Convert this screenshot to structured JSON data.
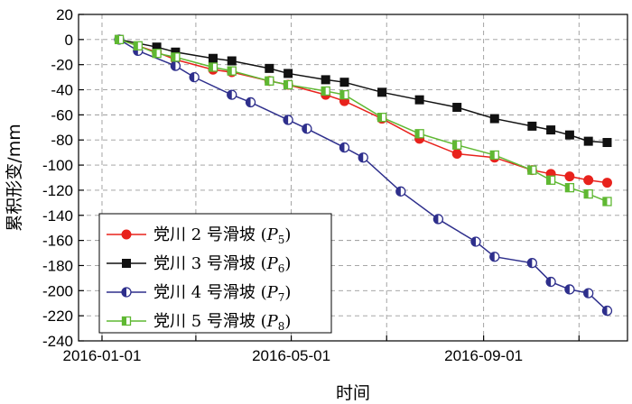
{
  "chart_data": {
    "type": "line",
    "xlabel": "时间",
    "ylabel": "累积形变/mm",
    "x_axis_type": "date",
    "xlim": [
      "2015-12-17",
      "2016-12-02"
    ],
    "ylim": [
      -240,
      20
    ],
    "x_ticks": [
      "2016-01-01",
      "2016-05-01",
      "2016-09-01"
    ],
    "x_minor_gridlines": [
      "2016-03-01",
      "2016-07-01",
      "2016-11-01"
    ],
    "y_ticks": [
      20,
      0,
      -20,
      -40,
      -60,
      -80,
      -100,
      -120,
      -140,
      -160,
      -180,
      -200,
      -220,
      -240
    ],
    "grid": true,
    "grid_style": "dashed",
    "legend_position": "bottom-left",
    "series": [
      {
        "name": "党川 2 号滑坡",
        "subscript_label": {
          "prefix": "P",
          "sub": "5"
        },
        "color": "#e8221c",
        "marker": "circle",
        "points": [
          [
            "2016-01-12",
            0
          ],
          [
            "2016-02-05",
            -10
          ],
          [
            "2016-02-17",
            -16
          ],
          [
            "2016-03-12",
            -24
          ],
          [
            "2016-03-24",
            -26
          ],
          [
            "2016-04-17",
            -33
          ],
          [
            "2016-04-29",
            -36
          ],
          [
            "2016-05-23",
            -44
          ],
          [
            "2016-06-04",
            -49
          ],
          [
            "2016-06-28",
            -63
          ],
          [
            "2016-07-22",
            -79
          ],
          [
            "2016-08-15",
            -91
          ],
          [
            "2016-09-08",
            -94
          ],
          [
            "2016-10-02",
            -104
          ],
          [
            "2016-10-14",
            -107
          ],
          [
            "2016-10-26",
            -109
          ],
          [
            "2016-11-07",
            -112
          ],
          [
            "2016-11-19",
            -114
          ]
        ]
      },
      {
        "name": "党川 3 号滑坡",
        "subscript_label": {
          "prefix": "P",
          "sub": "6"
        },
        "color": "#111111",
        "marker": "square",
        "points": [
          [
            "2016-01-12",
            0
          ],
          [
            "2016-02-05",
            -6
          ],
          [
            "2016-02-17",
            -10
          ],
          [
            "2016-03-12",
            -15
          ],
          [
            "2016-03-24",
            -17
          ],
          [
            "2016-04-17",
            -23
          ],
          [
            "2016-04-29",
            -27
          ],
          [
            "2016-05-23",
            -32
          ],
          [
            "2016-06-04",
            -34
          ],
          [
            "2016-06-28",
            -42
          ],
          [
            "2016-07-22",
            -48
          ],
          [
            "2016-08-15",
            -54
          ],
          [
            "2016-09-08",
            -63
          ],
          [
            "2016-10-02",
            -69
          ],
          [
            "2016-10-14",
            -72
          ],
          [
            "2016-10-26",
            -76
          ],
          [
            "2016-11-07",
            -81
          ],
          [
            "2016-11-19",
            -82
          ]
        ]
      },
      {
        "name": "党川 4 号滑坡",
        "subscript_label": {
          "prefix": "P",
          "sub": "7"
        },
        "color": "#2e2f8c",
        "marker": "half-circle",
        "points": [
          [
            "2016-01-12",
            0
          ],
          [
            "2016-01-24",
            -9
          ],
          [
            "2016-02-17",
            -21
          ],
          [
            "2016-02-29",
            -30
          ],
          [
            "2016-03-24",
            -44
          ],
          [
            "2016-04-05",
            -50
          ],
          [
            "2016-04-29",
            -64
          ],
          [
            "2016-05-11",
            -71
          ],
          [
            "2016-06-04",
            -86
          ],
          [
            "2016-06-16",
            -94
          ],
          [
            "2016-07-10",
            -121
          ],
          [
            "2016-08-03",
            -143
          ],
          [
            "2016-08-27",
            -161
          ],
          [
            "2016-09-08",
            -173
          ],
          [
            "2016-10-02",
            -178
          ],
          [
            "2016-10-14",
            -193
          ],
          [
            "2016-10-26",
            -199
          ],
          [
            "2016-11-07",
            -202
          ],
          [
            "2016-11-19",
            -216
          ]
        ]
      },
      {
        "name": "党川 5 号滑坡",
        "subscript_label": {
          "prefix": "P",
          "sub": "8"
        },
        "color": "#5fb832",
        "marker": "half-square",
        "points": [
          [
            "2016-01-12",
            0
          ],
          [
            "2016-01-24",
            -5
          ],
          [
            "2016-02-05",
            -11
          ],
          [
            "2016-02-17",
            -14
          ],
          [
            "2016-03-12",
            -22
          ],
          [
            "2016-03-24",
            -25
          ],
          [
            "2016-04-17",
            -33
          ],
          [
            "2016-04-29",
            -36
          ],
          [
            "2016-05-23",
            -41
          ],
          [
            "2016-06-04",
            -44
          ],
          [
            "2016-06-28",
            -62
          ],
          [
            "2016-07-22",
            -75
          ],
          [
            "2016-08-15",
            -84
          ],
          [
            "2016-09-08",
            -92
          ],
          [
            "2016-10-02",
            -104
          ],
          [
            "2016-10-14",
            -112
          ],
          [
            "2016-10-26",
            -118
          ],
          [
            "2016-11-07",
            -123
          ],
          [
            "2016-11-19",
            -129
          ]
        ]
      }
    ]
  }
}
